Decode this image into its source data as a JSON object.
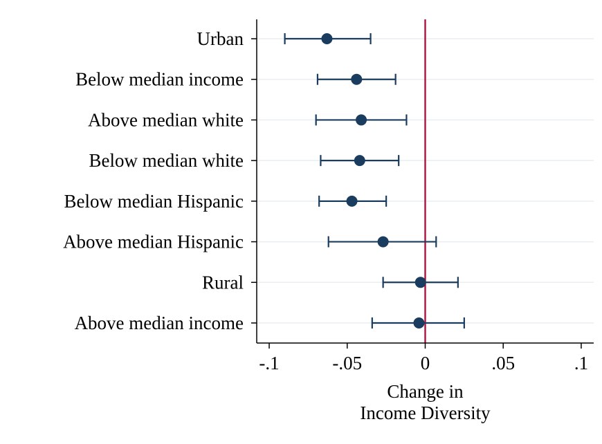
{
  "chart_data": {
    "type": "coefficient_plot",
    "title": "",
    "xlabel": [
      "Change in",
      "Income Diversity"
    ],
    "ylabel": "",
    "xlim": [
      -0.108,
      0.108
    ],
    "xticks": [
      {
        "value": -0.1,
        "label": "-.1"
      },
      {
        "value": -0.05,
        "label": "-.05"
      },
      {
        "value": 0,
        "label": "0"
      },
      {
        "value": 0.05,
        "label": ".05"
      },
      {
        "value": 0.1,
        "label": ".1"
      }
    ],
    "reference_line": {
      "x": 0,
      "color": "#b0103f"
    },
    "grid": "horizontal",
    "colors": {
      "marker": "#1a3c5e",
      "grid": "#e8eef2",
      "axis": "#000000"
    },
    "rows": [
      {
        "label": "Urban",
        "estimate": -0.063,
        "ci_low": -0.09,
        "ci_high": -0.035
      },
      {
        "label": "Below median income",
        "estimate": -0.044,
        "ci_low": -0.069,
        "ci_high": -0.019
      },
      {
        "label": "Above median white",
        "estimate": -0.041,
        "ci_low": -0.07,
        "ci_high": -0.012
      },
      {
        "label": "Below median white",
        "estimate": -0.042,
        "ci_low": -0.067,
        "ci_high": -0.017
      },
      {
        "label": "Below median Hispanic",
        "estimate": -0.047,
        "ci_low": -0.068,
        "ci_high": -0.025
      },
      {
        "label": "Above median Hispanic",
        "estimate": -0.027,
        "ci_low": -0.062,
        "ci_high": 0.007
      },
      {
        "label": "Rural",
        "estimate": -0.003,
        "ci_low": -0.027,
        "ci_high": 0.021
      },
      {
        "label": "Above median income",
        "estimate": -0.004,
        "ci_low": -0.034,
        "ci_high": 0.025
      }
    ]
  }
}
